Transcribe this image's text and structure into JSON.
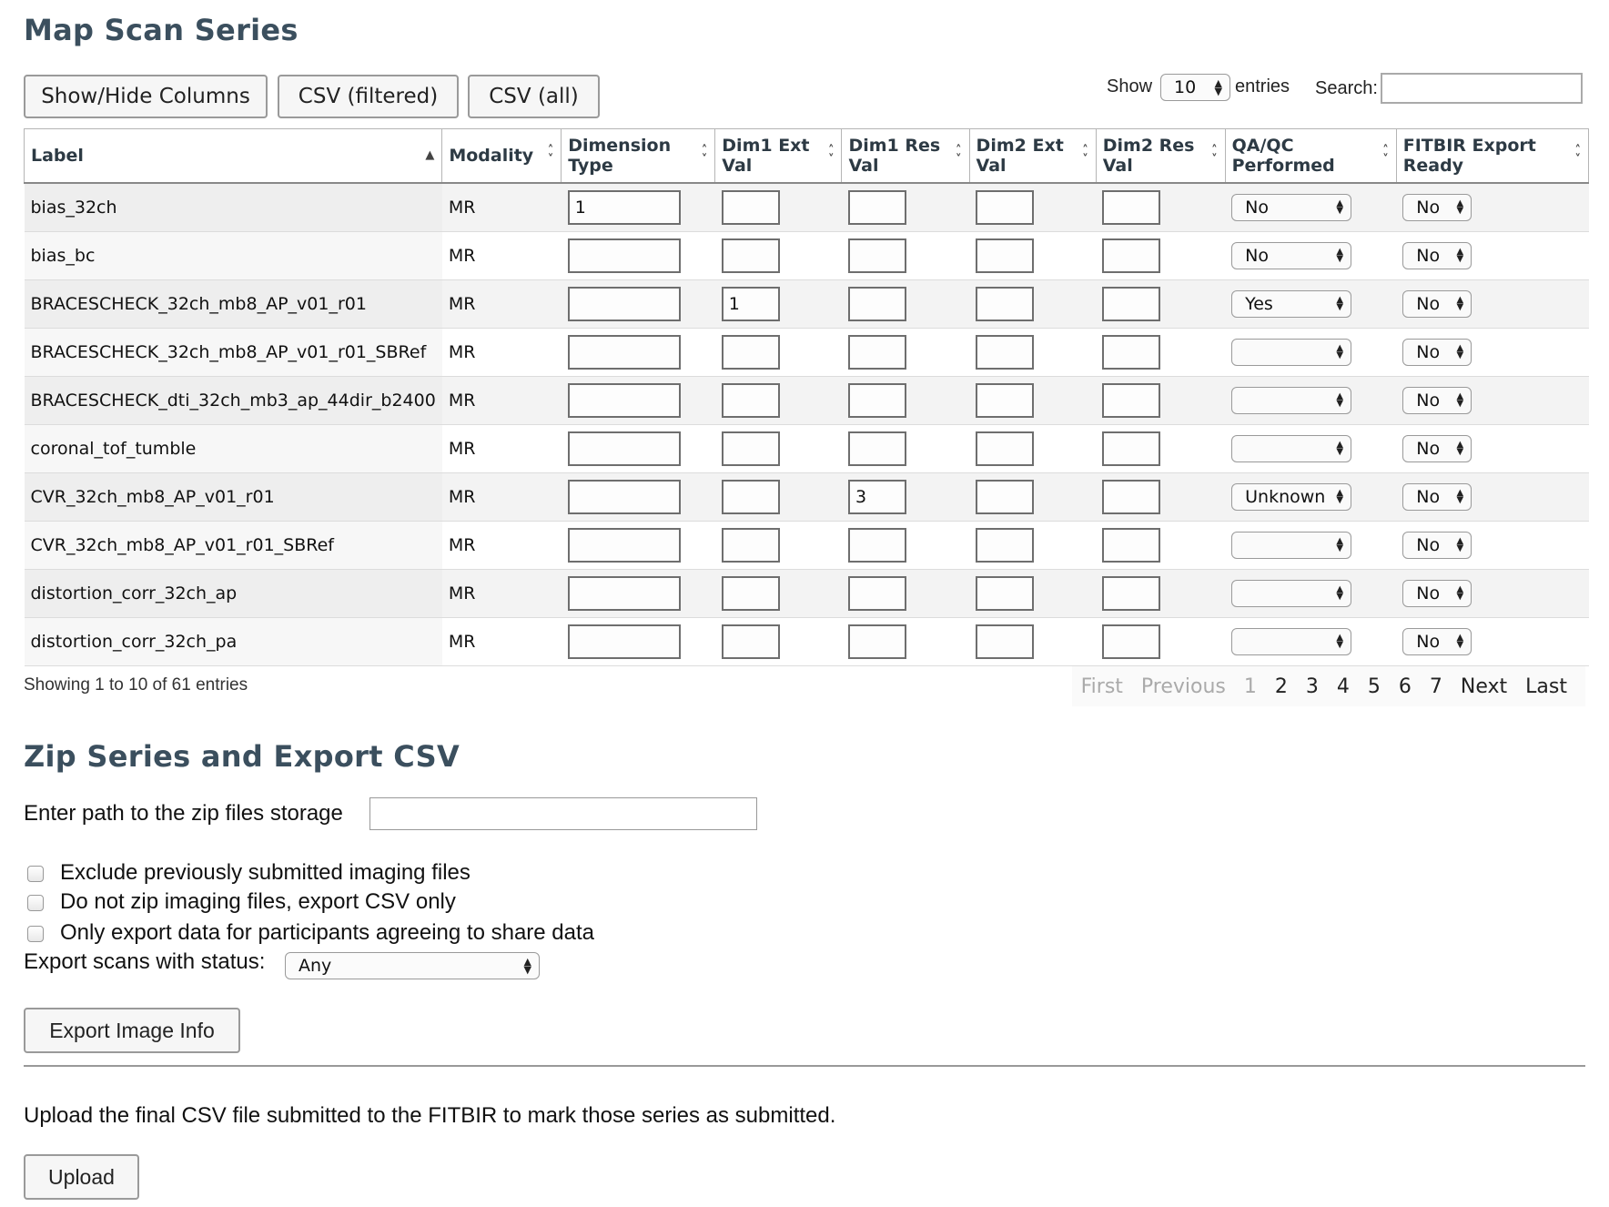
{
  "map_section": {
    "title": "Map Scan Series",
    "buttons": [
      "Show/Hide Columns",
      "CSV (filtered)",
      "CSV (all)"
    ],
    "show_label": "Show",
    "entries_value": "10",
    "entries_label": "entries",
    "search_label": "Search:",
    "search_value": ""
  },
  "table": {
    "headers": [
      "Label",
      "Modality",
      "Dimension Type",
      "Dim1 Ext Val",
      "Dim1 Res Val",
      "Dim2 Ext Val",
      "Dim2 Res Val",
      "QA/QC Performed",
      "FITBIR Export Ready"
    ],
    "rows": [
      {
        "label": "bias_32ch",
        "modality": "MR",
        "dim_type": "1",
        "dim1_ext": "",
        "dim1_res": "",
        "dim2_ext": "",
        "dim2_res": "",
        "qaqc": "No",
        "fitbir": "No"
      },
      {
        "label": "bias_bc",
        "modality": "MR",
        "dim_type": "",
        "dim1_ext": "",
        "dim1_res": "",
        "dim2_ext": "",
        "dim2_res": "",
        "qaqc": "No",
        "fitbir": "No"
      },
      {
        "label": "BRACESCHECK_32ch_mb8_AP_v01_r01",
        "modality": "MR",
        "dim_type": "",
        "dim1_ext": "1",
        "dim1_res": "",
        "dim2_ext": "",
        "dim2_res": "",
        "qaqc": "Yes",
        "fitbir": "No"
      },
      {
        "label": "BRACESCHECK_32ch_mb8_AP_v01_r01_SBRef",
        "modality": "MR",
        "dim_type": "",
        "dim1_ext": "",
        "dim1_res": "",
        "dim2_ext": "",
        "dim2_res": "",
        "qaqc": "",
        "fitbir": "No"
      },
      {
        "label": "BRACESCHECK_dti_32ch_mb3_ap_44dir_b2400",
        "modality": "MR",
        "dim_type": "",
        "dim1_ext": "",
        "dim1_res": "",
        "dim2_ext": "",
        "dim2_res": "",
        "qaqc": "",
        "fitbir": "No"
      },
      {
        "label": "coronal_tof_tumble",
        "modality": "MR",
        "dim_type": "",
        "dim1_ext": "",
        "dim1_res": "",
        "dim2_ext": "",
        "dim2_res": "",
        "qaqc": "",
        "fitbir": "No"
      },
      {
        "label": "CVR_32ch_mb8_AP_v01_r01",
        "modality": "MR",
        "dim_type": "",
        "dim1_ext": "",
        "dim1_res": "3",
        "dim2_ext": "",
        "dim2_res": "",
        "qaqc": "Unknown",
        "fitbir": "No"
      },
      {
        "label": "CVR_32ch_mb8_AP_v01_r01_SBRef",
        "modality": "MR",
        "dim_type": "",
        "dim1_ext": "",
        "dim1_res": "",
        "dim2_ext": "",
        "dim2_res": "",
        "qaqc": "",
        "fitbir": "No"
      },
      {
        "label": "distortion_corr_32ch_ap",
        "modality": "MR",
        "dim_type": "",
        "dim1_ext": "",
        "dim1_res": "",
        "dim2_ext": "",
        "dim2_res": "",
        "qaqc": "",
        "fitbir": "No"
      },
      {
        "label": "distortion_corr_32ch_pa",
        "modality": "MR",
        "dim_type": "",
        "dim1_ext": "",
        "dim1_res": "",
        "dim2_ext": "",
        "dim2_res": "",
        "qaqc": "",
        "fitbir": "No"
      }
    ]
  },
  "footer_info": "Showing 1 to 10 of 61 entries",
  "pagination": {
    "first": "First",
    "previous": "Previous",
    "pages": [
      "1",
      "2",
      "3",
      "4",
      "5",
      "6",
      "7"
    ],
    "current": "1",
    "next": "Next",
    "last": "Last"
  },
  "zip_section": {
    "title": "Zip Series and Export CSV",
    "path_label": "Enter path to the zip files storage",
    "path_value": "",
    "checkboxes": [
      "Exclude previously submitted imaging files",
      "Do not zip imaging files, export CSV only",
      "Only export data for participants agreeing to share data"
    ],
    "status_label": "Export scans with status:",
    "status_value": "Any",
    "export_button": "Export Image Info"
  },
  "upload_section": {
    "text": "Upload the final CSV file submitted to the FITBIR to mark those series as submitted.",
    "button": "Upload"
  }
}
